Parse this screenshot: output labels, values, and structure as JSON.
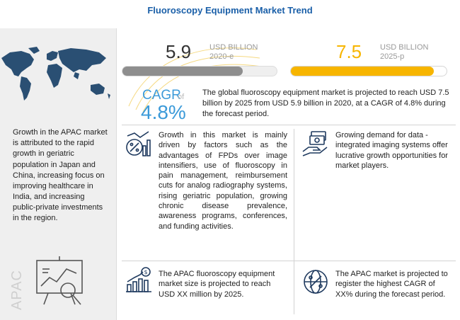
{
  "title": "Fluoroscopy Equipment Market Trend",
  "market": {
    "value_2020": "5.9",
    "unit_line1": "USD BILLION",
    "year_2020": "2020-e",
    "value_2025": "7.5",
    "year_2025": "2025-p",
    "bar_fill_2020": 0.78,
    "bar_fill_2025": 0.92
  },
  "cagr": {
    "label": "CAGR",
    "of": "of",
    "value": "4.8%"
  },
  "summary": "The global fluoroscopy equipment market is projected to reach USD 7.5 billion by 2025 from USD 5.9 billion in 2020, at a CAGR of 4.8% during the forecast period.",
  "apac": {
    "text": "Growth in the APAC market is attributed to the rapid growth in geriatric population in Japan and China, increasing focus on improving healthcare in India, and increasing public-private investments in the region.",
    "label": "APAC"
  },
  "drivers": "Growth in this market is mainly driven by factors such as the advantages of FPDs over image intensifiers, use of fluoroscopy in pain management, reimbursement cuts for analog radiography systems, rising geriatric population, growing chronic disease prevalence, awareness programs, conferences, and funding activities.",
  "opportunity": "Growing demand for data - integrated imaging systems offer lucrative growth opportunities for market players.",
  "apac_size": "The APAC fluoroscopy equipment market size is projected to reach USD XX  million by 2025.",
  "apac_cagr": "The APAC market is projected to register the highest CAGR of XX% during the forecast period.",
  "colors": {
    "title": "#1a5fa8",
    "accent_blue": "#3b9ad9",
    "accent_yellow": "#f7b500",
    "bar_grey": "#8e8e8e",
    "icon_navy": "#1f3a5f"
  },
  "icons": [
    "world-map",
    "percent-chart-icon",
    "money-in-hand-icon",
    "dollar-bar-chart-icon",
    "globe-percent-icon",
    "analytics-board-icon"
  ]
}
